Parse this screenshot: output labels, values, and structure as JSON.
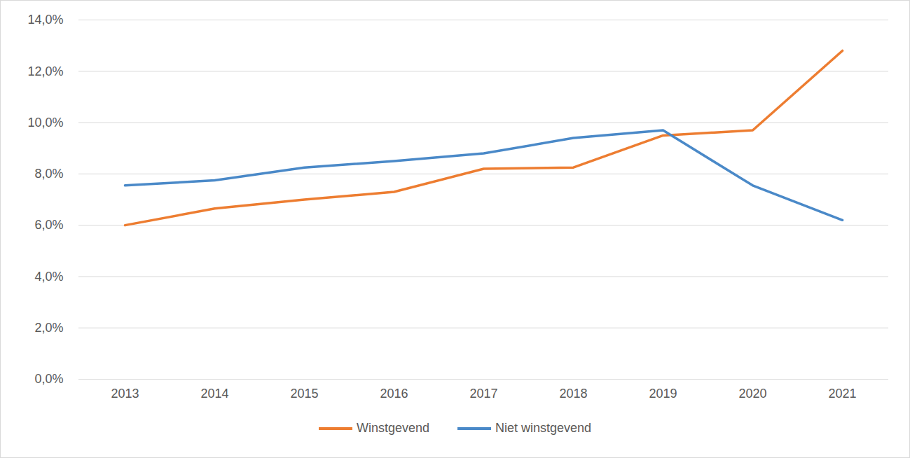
{
  "chart_data": {
    "type": "line",
    "categories": [
      "2013",
      "2014",
      "2015",
      "2016",
      "2017",
      "2018",
      "2019",
      "2020",
      "2021"
    ],
    "series": [
      {
        "name": "Winstgevend",
        "color": "#ED7D31",
        "values": [
          6.0,
          6.65,
          7.0,
          7.3,
          8.2,
          8.25,
          9.5,
          9.7,
          12.8
        ]
      },
      {
        "name": "Niet winstgevend",
        "color": "#4A89C8",
        "values": [
          7.55,
          7.75,
          8.25,
          8.5,
          8.8,
          9.4,
          9.7,
          7.55,
          6.2
        ]
      }
    ],
    "ylim": [
      0,
      14
    ],
    "yticks": [
      {
        "value": 0,
        "label": "0,0%"
      },
      {
        "value": 2,
        "label": "2,0%"
      },
      {
        "value": 4,
        "label": "4,0%"
      },
      {
        "value": 6,
        "label": "6,0%"
      },
      {
        "value": 8,
        "label": "8,0%"
      },
      {
        "value": 10,
        "label": "10,0%"
      },
      {
        "value": 12,
        "label": "12,0%"
      },
      {
        "value": 14,
        "label": "14,0%"
      }
    ],
    "grid": true,
    "legend": "bottom"
  }
}
